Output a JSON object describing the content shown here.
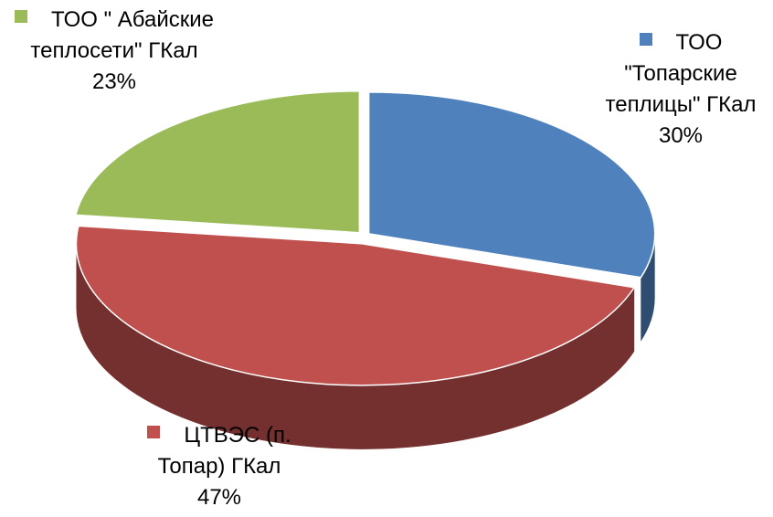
{
  "chart_data": {
    "type": "pie",
    "categories": [
      "ТОО \"Топарские теплицы\" ГКал",
      "ЦТВЭС (п. Топар) ГКал",
      "ТОО \" Абайские теплосети\" ГКал"
    ],
    "values": [
      30,
      47,
      23
    ],
    "value_labels": [
      "30%",
      "47%",
      "23%"
    ],
    "colors": [
      "#4f81bd",
      "#c0504d",
      "#9bbb59"
    ]
  }
}
